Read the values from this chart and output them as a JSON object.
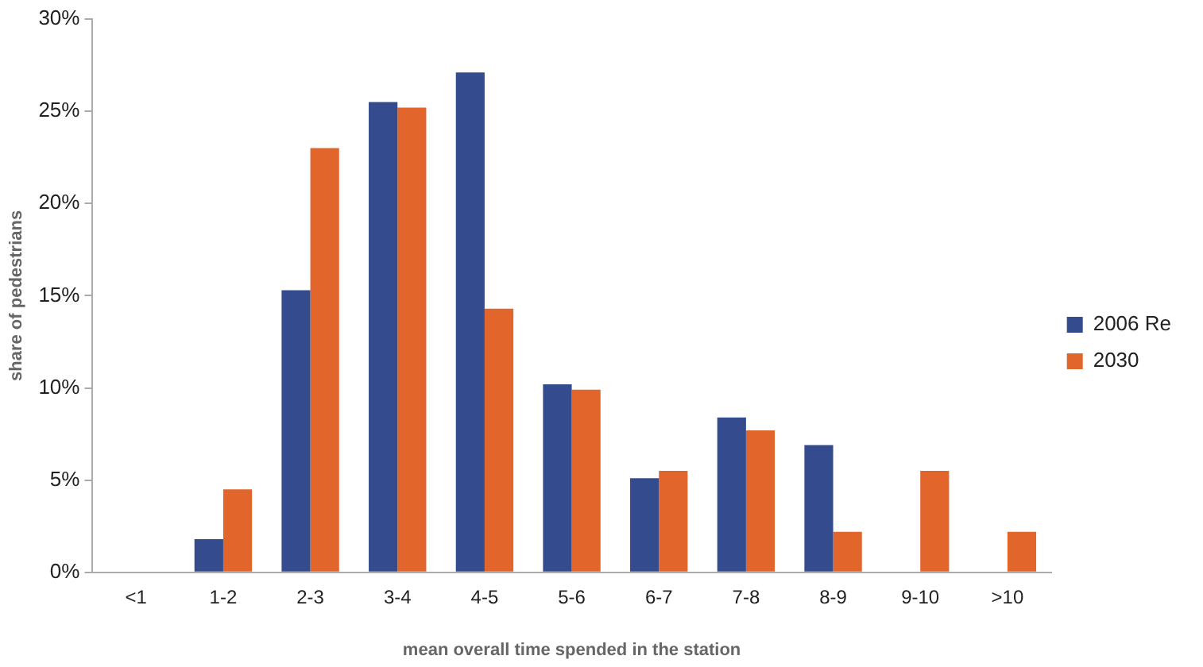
{
  "chart_data": {
    "type": "bar",
    "xlabel": "mean overall time spended in the station",
    "ylabel": "share of pedestrians",
    "categories": [
      "<1",
      "1-2",
      "2-3",
      "3-4",
      "4-5",
      "5-6",
      "6-7",
      "7-8",
      "8-9",
      "9-10",
      ">10"
    ],
    "series": [
      {
        "name": "2006 Re",
        "color": "#344b8d",
        "values": [
          0,
          1.8,
          15.3,
          25.5,
          27.1,
          10.2,
          5.1,
          8.4,
          6.9,
          0,
          0
        ]
      },
      {
        "name": "2030",
        "color": "#e2662c",
        "values": [
          0,
          4.5,
          23.0,
          25.2,
          14.3,
          9.9,
          5.5,
          7.7,
          2.2,
          5.5,
          2.2
        ]
      }
    ],
    "ylim": [
      0,
      30
    ],
    "yticks": [
      {
        "value": 0,
        "label": "0%"
      },
      {
        "value": 5,
        "label": "5%"
      },
      {
        "value": 10,
        "label": "10%"
      },
      {
        "value": 15,
        "label": "15%"
      },
      {
        "value": 20,
        "label": "20%"
      },
      {
        "value": 25,
        "label": "25%"
      },
      {
        "value": 30,
        "label": "30%"
      }
    ],
    "grid": false,
    "legend": "right"
  }
}
